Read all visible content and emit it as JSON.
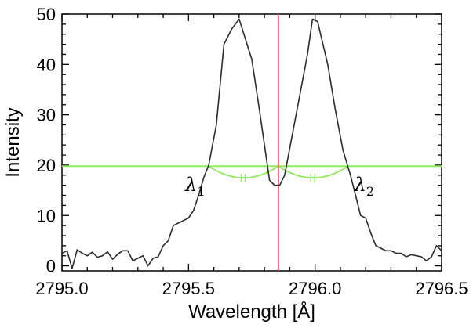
{
  "chart_data": {
    "type": "line",
    "xlabel": "Wavelength [Å]",
    "ylabel": "Intensity",
    "xlim": [
      2795.0,
      2796.5
    ],
    "ylim": [
      -1,
      50
    ],
    "xticks": [
      2795.0,
      2795.5,
      2796.0,
      2796.5
    ],
    "xtick_labels": [
      "2795.0",
      "2795.5",
      "2796.0",
      "2796.5"
    ],
    "yticks": [
      0,
      10,
      20,
      30,
      40,
      50
    ],
    "ytick_labels": [
      "0",
      "10",
      "20",
      "30",
      "40",
      "50"
    ],
    "grid": false,
    "legend": "none",
    "series": [
      {
        "color": "#2b2b2b",
        "x": [
          2795.0,
          2795.02,
          2795.04,
          2795.06,
          2795.08,
          2795.1,
          2795.12,
          2795.14,
          2795.16,
          2795.18,
          2795.2,
          2795.22,
          2795.24,
          2795.26,
          2795.28,
          2795.3,
          2795.32,
          2795.34,
          2795.36,
          2795.38,
          2795.4,
          2795.42,
          2795.44,
          2795.46,
          2795.48,
          2795.5,
          2795.52,
          2795.54,
          2795.56,
          2795.58,
          2795.61,
          2795.64,
          2795.67,
          2795.7,
          2795.75,
          2795.78,
          2795.82,
          2795.84,
          2795.86,
          2795.88,
          2795.91,
          2795.94,
          2795.97,
          2795.99,
          2796.01,
          2796.05,
          2796.08,
          2796.11,
          2796.14,
          2796.16,
          2796.18,
          2796.2,
          2796.22,
          2796.24,
          2796.26,
          2796.28,
          2796.3,
          2796.32,
          2796.34,
          2796.36,
          2796.38,
          2796.4,
          2796.42,
          2796.44,
          2796.46,
          2796.48,
          2796.5
        ],
        "y": [
          2.5,
          3.0,
          -0.5,
          3.2,
          2.5,
          2.0,
          2.7,
          1.7,
          2.0,
          2.8,
          1.3,
          2.3,
          3.0,
          3.0,
          1.0,
          1.5,
          2.0,
          0.0,
          1.5,
          1.8,
          4.0,
          5.0,
          8.0,
          8.5,
          9.0,
          9.5,
          11.0,
          14.0,
          17.5,
          20.0,
          28.0,
          44.0,
          47.0,
          49.0,
          41.0,
          31.0,
          17.0,
          16.0,
          16.0,
          18.0,
          26.0,
          34.0,
          42.0,
          49.0,
          48.5,
          40.0,
          31.0,
          23.0,
          18.0,
          14.0,
          10.0,
          9.5,
          6.5,
          4.0,
          3.5,
          3.0,
          3.0,
          2.5,
          2.5,
          1.8,
          2.2,
          2.0,
          1.8,
          1.0,
          1.8,
          4.0,
          3.0
        ]
      }
    ],
    "threshold_line": {
      "y": 19.8,
      "color": "#90ea5c"
    },
    "center_line": {
      "x": 2795.855,
      "color": "#e8526b"
    },
    "arcs": [
      {
        "x_start": 2795.58,
        "x_end": 2795.855,
        "color": "#90ea5c"
      },
      {
        "x_start": 2795.855,
        "x_end": 2796.13,
        "color": "#90ea5c"
      }
    ],
    "annotations": [
      {
        "label": "λ",
        "subscript": "1",
        "x": 2795.58,
        "y": 19.8
      },
      {
        "label": "λ",
        "subscript": "2",
        "x": 2796.13,
        "y": 19.8
      }
    ]
  }
}
